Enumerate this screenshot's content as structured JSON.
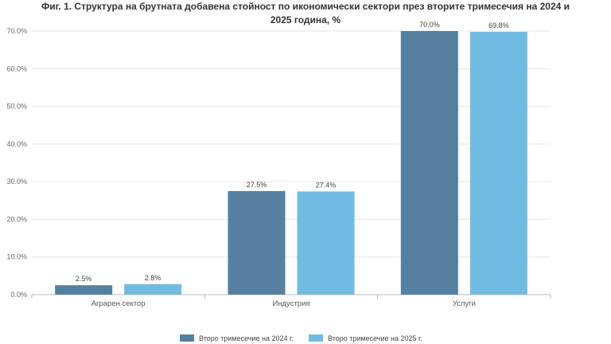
{
  "chart_data": {
    "type": "bar",
    "title": "Фиг. 1. Структура на брутната добавена стойност по икономически сектори през вторите тримесечия на 2024 и 2025 година, %",
    "title_lines": [
      "Фиг. 1. Структура на брутната добавена стойност по икономически сектори през вторите тримесечия на 2024 и",
      "2025 година, %"
    ],
    "categories": [
      "Аграрен сектор",
      "Индустрия",
      "Услуги"
    ],
    "series": [
      {
        "name": "Второ тримесечие на 2024 г.",
        "values": [
          2.5,
          27.5,
          70.0
        ],
        "color": "#5580a0",
        "labels": [
          "2.5%",
          "27.5%",
          "70.0%"
        ]
      },
      {
        "name": "Второ тримесечие на 2025 г.",
        "values": [
          2.8,
          27.4,
          69.8
        ],
        "color": "#72bbe0",
        "labels": [
          "2.8%",
          "27.4%",
          "69.8%"
        ]
      }
    ],
    "ylim": [
      0,
      70
    ],
    "yticks": [
      0,
      10,
      20,
      30,
      40,
      50,
      60,
      70
    ],
    "ytick_labels": [
      "0.0%",
      "10.0%",
      "20.0%",
      "30.0%",
      "40.0%",
      "50.0%",
      "60.0%",
      "70.0%"
    ],
    "xlabel": "",
    "ylabel": "",
    "grid": true,
    "legend_position": "bottom-center"
  }
}
